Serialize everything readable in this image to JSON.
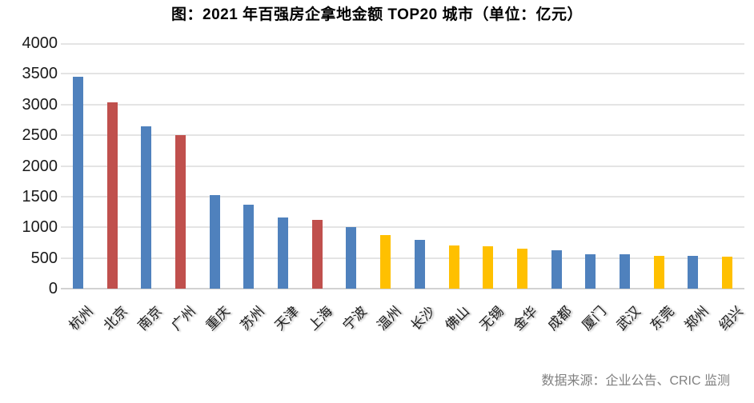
{
  "title": "图：2021 年百强房企拿地金额 TOP20 城市（单位：亿元）",
  "source_note": "数据来源：企业公告、CRIC 监测",
  "colors": {
    "blue": "#4F81BD",
    "red": "#C0504D",
    "yellow": "#FFC000",
    "gridline": "#E4E4E4",
    "axis_line": "#D2D2D2",
    "title_text": "#000000",
    "tick_text": "#1A1A1A",
    "source_text": "#808080"
  },
  "chart_data": {
    "type": "bar",
    "title": "2021 年百强房企拿地金额 TOP20 城市",
    "unit": "亿元",
    "categories": [
      "杭州",
      "北京",
      "南京",
      "广州",
      "重庆",
      "苏州",
      "天津",
      "上海",
      "宁波",
      "温州",
      "长沙",
      "佛山",
      "无锡",
      "金华",
      "成都",
      "厦门",
      "武汉",
      "东莞",
      "郑州",
      "绍兴"
    ],
    "values": [
      3450,
      3030,
      2650,
      2500,
      1520,
      1370,
      1165,
      1120,
      1005,
      870,
      790,
      705,
      690,
      650,
      625,
      560,
      555,
      540,
      535,
      520
    ],
    "bar_colors": [
      "blue",
      "red",
      "blue",
      "red",
      "blue",
      "blue",
      "blue",
      "red",
      "blue",
      "yellow",
      "blue",
      "yellow",
      "yellow",
      "yellow",
      "blue",
      "blue",
      "blue",
      "yellow",
      "blue",
      "yellow"
    ],
    "xlabel": "",
    "ylabel": "",
    "ylim": [
      0,
      4000
    ],
    "yticks": [
      0,
      500,
      1000,
      1500,
      2000,
      2500,
      3000,
      3500,
      4000
    ],
    "grid": true,
    "legend": false,
    "xtick_rotation": 45
  }
}
